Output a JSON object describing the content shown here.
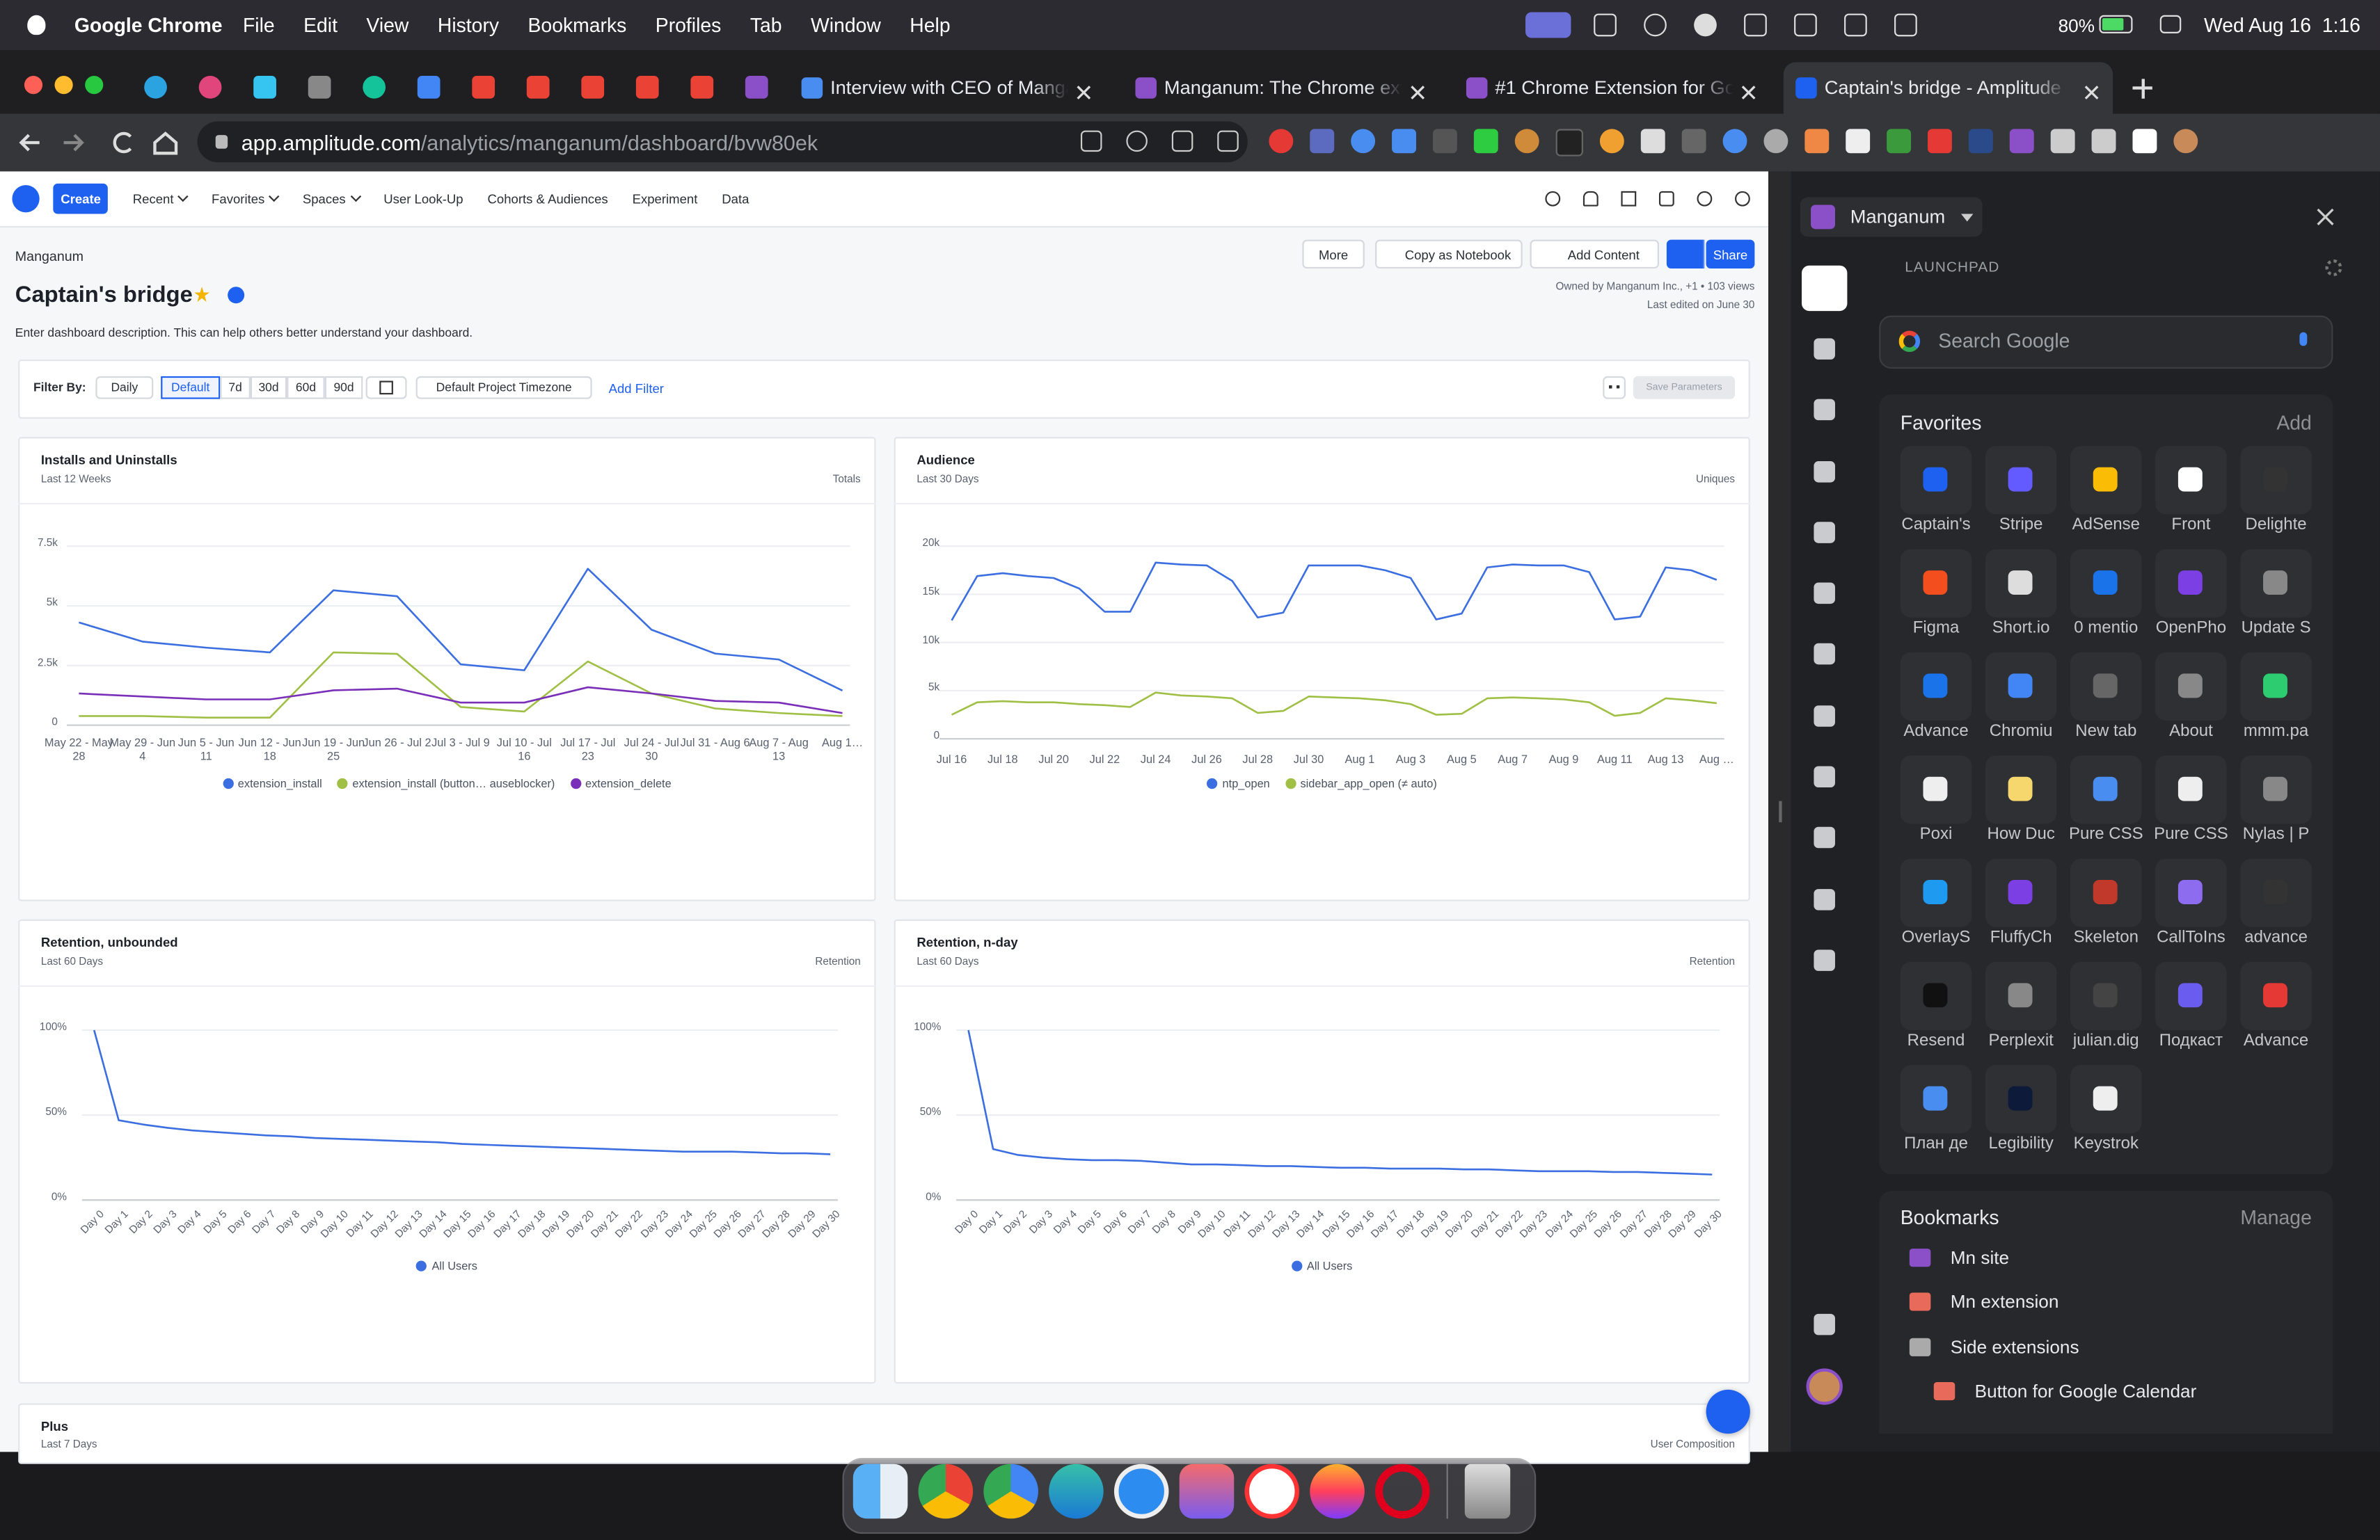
{
  "menubar": {
    "app": "Google Chrome",
    "menus": [
      "File",
      "Edit",
      "View",
      "History",
      "Bookmarks",
      "Profiles",
      "Tab",
      "Window",
      "Help"
    ],
    "battery": "80%",
    "datetime": "Wed Aug 16  1:16"
  },
  "browser": {
    "tabs": [
      "Interview with CEO of Manganum",
      "Manganum: The Chrome extension",
      "#1 Chrome Extension for Google",
      "Captain's bridge - Amplitude"
    ],
    "url_host": "app.amplitude.com",
    "url_path": "/analytics/manganum/dashboard/bvw80ek"
  },
  "amplitude": {
    "nav": [
      "Create",
      "Recent",
      "Favorites",
      "Spaces",
      "User Look-Up",
      "Cohorts & Audiences",
      "Experiment",
      "Data"
    ],
    "project": "Manganum",
    "title": "Captain's bridge",
    "description": "Enter dashboard description. This can help others better understand your dashboard.",
    "buttons": [
      "More",
      "Copy as Notebook",
      "Add Content",
      "Share"
    ],
    "owner": "Owned by Manganum Inc., +1 • 103 views",
    "edited": "Last edited on June 30",
    "filter": {
      "label": "Filter By:",
      "interval": "Daily",
      "ranges": [
        "Default",
        "7d",
        "30d",
        "60d",
        "90d"
      ],
      "timezone": "Default Project Timezone",
      "add": "Add Filter",
      "save": "Save Parameters"
    },
    "plus": {
      "title": "Plus",
      "subtitle": "Last 7 Days",
      "mode_label": "User Composition"
    }
  },
  "sidebar": {
    "profile": "Manganum",
    "section": "LAUNCHPAD",
    "search": "Search Google",
    "favorites_title": "Favorites",
    "favorites_action": "Add",
    "favorites": [
      "Captain's",
      "Stripe",
      "AdSense",
      "Front",
      "Delighte",
      "Figma",
      "Short.io",
      "0 mentio",
      "OpenPho",
      "Update S",
      "Advance",
      "Chromiu",
      "New tab",
      "About",
      "mmm.pa",
      "Poxi",
      "How Duc",
      "Pure CSS",
      "Pure CSS",
      "Nylas | P",
      "OverlayS",
      "FluffyCh",
      "Skeleton",
      "CallToIns",
      "advance",
      "Resend",
      "Perplexit",
      "julian.dig",
      "Подкаст",
      "Advance",
      "План де",
      "Legibility",
      "Keystrok"
    ],
    "bookmarks_title": "Bookmarks",
    "bookmarks_action": "Manage",
    "bookmarks": [
      "Mn site",
      "Mn extension",
      "Side extensions",
      "Button for Google Calendar"
    ]
  },
  "chart_data": [
    {
      "type": "line",
      "title": "Installs and Uninstalls",
      "subtitle": "Last 12 Weeks",
      "mode_label": "Totals",
      "categories": [
        "May 22 - May 28",
        "May 29 - Jun 4",
        "Jun 5 - Jun 11",
        "Jun 12 - Jun 18",
        "Jun 19 - Jun 25",
        "Jun 26 - Jul 2",
        "Jul 3 - Jul 9",
        "Jul 10 - Jul 16",
        "Jul 17 - Jul 23",
        "Jul 24 - Jul 30",
        "Jul 31 - Aug 6",
        "Aug 7 - Aug 13",
        "Aug 1…"
      ],
      "ylim": [
        0,
        7500
      ],
      "yticks": [
        0,
        {
          "value": 2500,
          "label": "2.5k"
        },
        {
          "value": 5000,
          "label": "5k"
        },
        {
          "value": 7500,
          "label": "7.5k"
        }
      ],
      "grid": true,
      "series": [
        {
          "name": "extension_install",
          "color": "#3b6ee0",
          "values": [
            4300,
            3500,
            3250,
            3050,
            5650,
            5400,
            2550,
            2300,
            6550,
            4000,
            3000,
            2750,
            1450
          ]
        },
        {
          "name": "extension_install (button… auseblocker)",
          "color": "#9fbf45",
          "values": [
            380,
            380,
            320,
            320,
            3050,
            2990,
            760,
            570,
            2670,
            1330,
            700,
            510,
            380
          ]
        },
        {
          "name": "extension_delete",
          "color": "#7a2fb8",
          "values": [
            1330,
            1200,
            1080,
            1080,
            1460,
            1530,
            950,
            950,
            1590,
            1330,
            1020,
            950,
            510
          ]
        }
      ]
    },
    {
      "type": "line",
      "title": "Audience",
      "subtitle": "Last 30 Days",
      "mode_label": "Uniques",
      "categories": [
        "Jul 16",
        null,
        "Jul 18",
        null,
        "Jul 20",
        null,
        "Jul 22",
        null,
        "Jul 24",
        null,
        "Jul 26",
        null,
        "Jul 28",
        null,
        "Jul 30",
        null,
        "Aug 1",
        null,
        "Aug 3",
        null,
        "Aug 5",
        null,
        "Aug 7",
        null,
        "Aug 9",
        null,
        "Aug 11",
        null,
        "Aug 13",
        null,
        "Aug …"
      ],
      "ylim": [
        0,
        20000
      ],
      "yticks": [
        0,
        {
          "value": 5000,
          "label": "5k"
        },
        {
          "value": 10000,
          "label": "10k"
        },
        {
          "value": 15000,
          "label": "15k"
        },
        {
          "value": 20000,
          "label": "20k"
        }
      ],
      "grid": true,
      "series": [
        {
          "name": "ntp_open",
          "color": "#3b6ee0",
          "values": [
            12300,
            16900,
            17200,
            16900,
            16700,
            15600,
            13200,
            13200,
            18300,
            18100,
            18000,
            16400,
            12600,
            13100,
            18000,
            18000,
            18000,
            17500,
            16700,
            12400,
            13000,
            17800,
            18100,
            18000,
            18000,
            17300,
            12400,
            12700,
            17800,
            17500,
            16500
          ]
        },
        {
          "name": "sidebar_app_open (≠ auto)",
          "color": "#9fbf45",
          "values": [
            2500,
            3800,
            3900,
            3800,
            3800,
            3600,
            3500,
            3300,
            4800,
            4500,
            4400,
            4200,
            2700,
            2900,
            4400,
            4300,
            4200,
            4000,
            3600,
            2500,
            2600,
            4200,
            4300,
            4200,
            4100,
            3800,
            2400,
            2700,
            4200,
            4000,
            3700
          ]
        }
      ]
    },
    {
      "type": "line",
      "title": "Retention, unbounded",
      "subtitle": "Last 60 Days",
      "mode_label": "Retention",
      "categories": [
        "Day 0",
        "Day 1",
        "Day 2",
        "Day 3",
        "Day 4",
        "Day 5",
        "Day 6",
        "Day 7",
        "Day 8",
        "Day 9",
        "Day 10",
        "Day 11",
        "Day 12",
        "Day 13",
        "Day 14",
        "Day 15",
        "Day 16",
        "Day 17",
        "Day 18",
        "Day 19",
        "Day 20",
        "Day 21",
        "Day 22",
        "Day 23",
        "Day 24",
        "Day 25",
        "Day 26",
        "Day 27",
        "Day 28",
        "Day 29",
        "Day 30"
      ],
      "ylim": [
        0,
        100
      ],
      "yticks": [
        {
          "value": 0,
          "label": "0%"
        },
        {
          "value": 50,
          "label": "50%"
        },
        {
          "value": 100,
          "label": "100%"
        }
      ],
      "grid": true,
      "series": [
        {
          "name": "All Users",
          "color": "#3b6ee0",
          "values": [
            100,
            47,
            44.5,
            42.5,
            41,
            40,
            39,
            38,
            37.5,
            36.5,
            36,
            35.5,
            35,
            34.5,
            34,
            33,
            32.5,
            32,
            31.5,
            31,
            30.5,
            30,
            29.5,
            29,
            28.5,
            28.5,
            28.5,
            28,
            27.5,
            27.5,
            27
          ]
        }
      ]
    },
    {
      "type": "line",
      "title": "Retention, n-day",
      "subtitle": "Last 60 Days",
      "mode_label": "Retention",
      "categories": [
        "Day 0",
        "Day 1",
        "Day 2",
        "Day 3",
        "Day 4",
        "Day 5",
        "Day 6",
        "Day 7",
        "Day 8",
        "Day 9",
        "Day 10",
        "Day 11",
        "Day 12",
        "Day 13",
        "Day 14",
        "Day 15",
        "Day 16",
        "Day 17",
        "Day 18",
        "Day 19",
        "Day 20",
        "Day 21",
        "Day 22",
        "Day 23",
        "Day 24",
        "Day 25",
        "Day 26",
        "Day 27",
        "Day 28",
        "Day 29",
        "Day 30"
      ],
      "ylim": [
        0,
        100
      ],
      "yticks": [
        {
          "value": 0,
          "label": "0%"
        },
        {
          "value": 50,
          "label": "50%"
        },
        {
          "value": 100,
          "label": "100%"
        }
      ],
      "grid": true,
      "series": [
        {
          "name": "All Users",
          "color": "#3b6ee0",
          "values": [
            100,
            30,
            26.5,
            25,
            24,
            23.5,
            23.5,
            23,
            22,
            21,
            21,
            20.5,
            20,
            20,
            19.5,
            19,
            19,
            18.5,
            18.5,
            18.5,
            18,
            18,
            17.5,
            17,
            17,
            17,
            16.5,
            16.5,
            16,
            15.5,
            15
          ]
        }
      ]
    }
  ]
}
